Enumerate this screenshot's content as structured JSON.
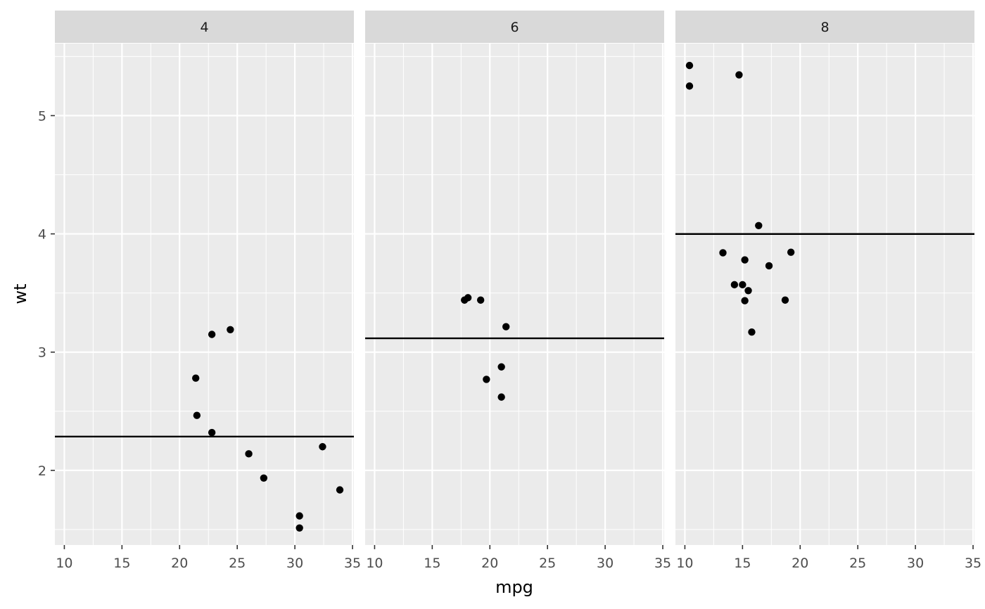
{
  "chart_data": {
    "type": "scatter",
    "facet_by": "cyl",
    "xlabel": "mpg",
    "ylabel": "wt",
    "xlim": [
      9.18,
      35.12
    ],
    "ylim": [
      1.3689,
      5.6091
    ],
    "x_ticks": [
      10,
      15,
      20,
      25,
      30,
      35
    ],
    "y_ticks": [
      2,
      3,
      4,
      5
    ],
    "grid": true,
    "legend": "none",
    "colors": {
      "panel_bg": "#EBEBEB",
      "grid_major": "#FFFFFF",
      "strip_bg": "#D9D9D9",
      "point": "#000000",
      "hline": "#000000"
    },
    "panels": [
      {
        "label": "4",
        "hline": 2.2857,
        "points": [
          {
            "x": 22.8,
            "y": 2.32
          },
          {
            "x": 24.4,
            "y": 3.19
          },
          {
            "x": 22.8,
            "y": 3.15
          },
          {
            "x": 32.4,
            "y": 2.2
          },
          {
            "x": 30.4,
            "y": 1.615
          },
          {
            "x": 33.9,
            "y": 1.835
          },
          {
            "x": 21.5,
            "y": 2.465
          },
          {
            "x": 27.3,
            "y": 1.935
          },
          {
            "x": 26.0,
            "y": 2.14
          },
          {
            "x": 30.4,
            "y": 1.513
          },
          {
            "x": 21.4,
            "y": 2.78
          }
        ]
      },
      {
        "label": "6",
        "hline": 3.1171,
        "points": [
          {
            "x": 21.0,
            "y": 2.62
          },
          {
            "x": 21.0,
            "y": 2.875
          },
          {
            "x": 21.4,
            "y": 3.215
          },
          {
            "x": 18.1,
            "y": 3.46
          },
          {
            "x": 19.2,
            "y": 3.44
          },
          {
            "x": 17.8,
            "y": 3.44
          },
          {
            "x": 19.7,
            "y": 2.77
          }
        ]
      },
      {
        "label": "8",
        "hline": 3.999,
        "points": [
          {
            "x": 18.7,
            "y": 3.44
          },
          {
            "x": 14.3,
            "y": 3.57
          },
          {
            "x": 16.4,
            "y": 4.07
          },
          {
            "x": 17.3,
            "y": 3.73
          },
          {
            "x": 15.2,
            "y": 3.78
          },
          {
            "x": 10.4,
            "y": 5.25
          },
          {
            "x": 10.4,
            "y": 5.424
          },
          {
            "x": 14.7,
            "y": 5.345
          },
          {
            "x": 15.5,
            "y": 3.52
          },
          {
            "x": 15.2,
            "y": 3.435
          },
          {
            "x": 13.3,
            "y": 3.84
          },
          {
            "x": 19.2,
            "y": 3.845
          },
          {
            "x": 15.8,
            "y": 3.17
          },
          {
            "x": 15.0,
            "y": 3.57
          }
        ]
      }
    ]
  }
}
